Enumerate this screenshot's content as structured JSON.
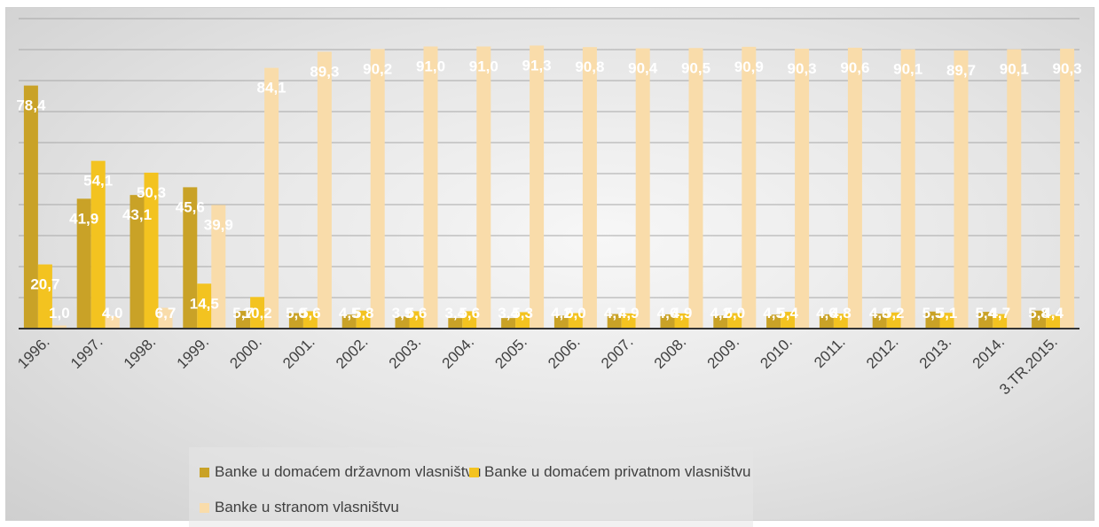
{
  "chart_data": {
    "type": "bar",
    "categories": [
      "1996.",
      "1997.",
      "1998.",
      "1999.",
      "2000.",
      "2001.",
      "2002.",
      "2003.",
      "2004.",
      "2005.",
      "2006.",
      "2007.",
      "2008.",
      "2009.",
      "2010.",
      "2011.",
      "2012.",
      "2013.",
      "2014.",
      "3.TR.2015."
    ],
    "series": [
      {
        "name": "Banke u domaćem državnom vlasništvu",
        "color": "#c9a227",
        "values": [
          78.4,
          41.9,
          43.1,
          45.6,
          5.7,
          5.0,
          4.5,
          3.9,
          3.4,
          3.4,
          4.2,
          4.7,
          4.6,
          4.2,
          4.5,
          4.6,
          4.8,
          5.5,
          5.4,
          5.8
        ],
        "labels": [
          "78,4",
          "41,9",
          "43,1",
          "45,6",
          "5,7",
          "5,0",
          "4,5",
          "3,9",
          "3,4",
          "3,4",
          "4,2",
          "4,7",
          "4,6",
          "4,2",
          "4,5",
          "4,6",
          "4,8",
          "5,5",
          "5,4",
          "5,8"
        ]
      },
      {
        "name": "Banke u domaćem privatnom vlasništvu",
        "color": "#f3c320",
        "values": [
          20.7,
          54.1,
          50.3,
          14.5,
          10.2,
          5.6,
          5.8,
          5.6,
          5.6,
          5.3,
          5.0,
          4.9,
          4.9,
          5.0,
          5.4,
          4.8,
          5.2,
          5.1,
          4.7,
          4.4
        ],
        "labels": [
          "20,7",
          "54,1",
          "50,3",
          "14,5",
          "10,2",
          "5,6",
          "5,8",
          "5,6",
          "5,6",
          "5,3",
          "5,0",
          "4,9",
          "4,9",
          "5,0",
          "5,4",
          "4,8",
          "5,2",
          "5,1",
          "4,7",
          "4,4"
        ]
      },
      {
        "name": "Banke u stranom vlasništvu",
        "color": "#f9dcaa",
        "values": [
          1.0,
          4.0,
          6.7,
          39.9,
          84.1,
          89.3,
          90.2,
          91.0,
          91.0,
          91.3,
          90.8,
          90.4,
          90.5,
          90.9,
          90.3,
          90.6,
          90.1,
          89.7,
          90.1,
          90.3
        ],
        "labels": [
          "1,0",
          "4,0",
          "6,7",
          "39,9",
          "84,1",
          "89,3",
          "90,2",
          "91,0",
          "91,0",
          "91,3",
          "90,8",
          "90,4",
          "90,5",
          "90,9",
          "90,3",
          "90,6",
          "90,1",
          "89,7",
          "90,1",
          "90,3"
        ]
      }
    ],
    "ylim": [
      0,
      100
    ],
    "grid": true,
    "legend_position": "bottom",
    "title": "",
    "xlabel": "",
    "ylabel": ""
  }
}
